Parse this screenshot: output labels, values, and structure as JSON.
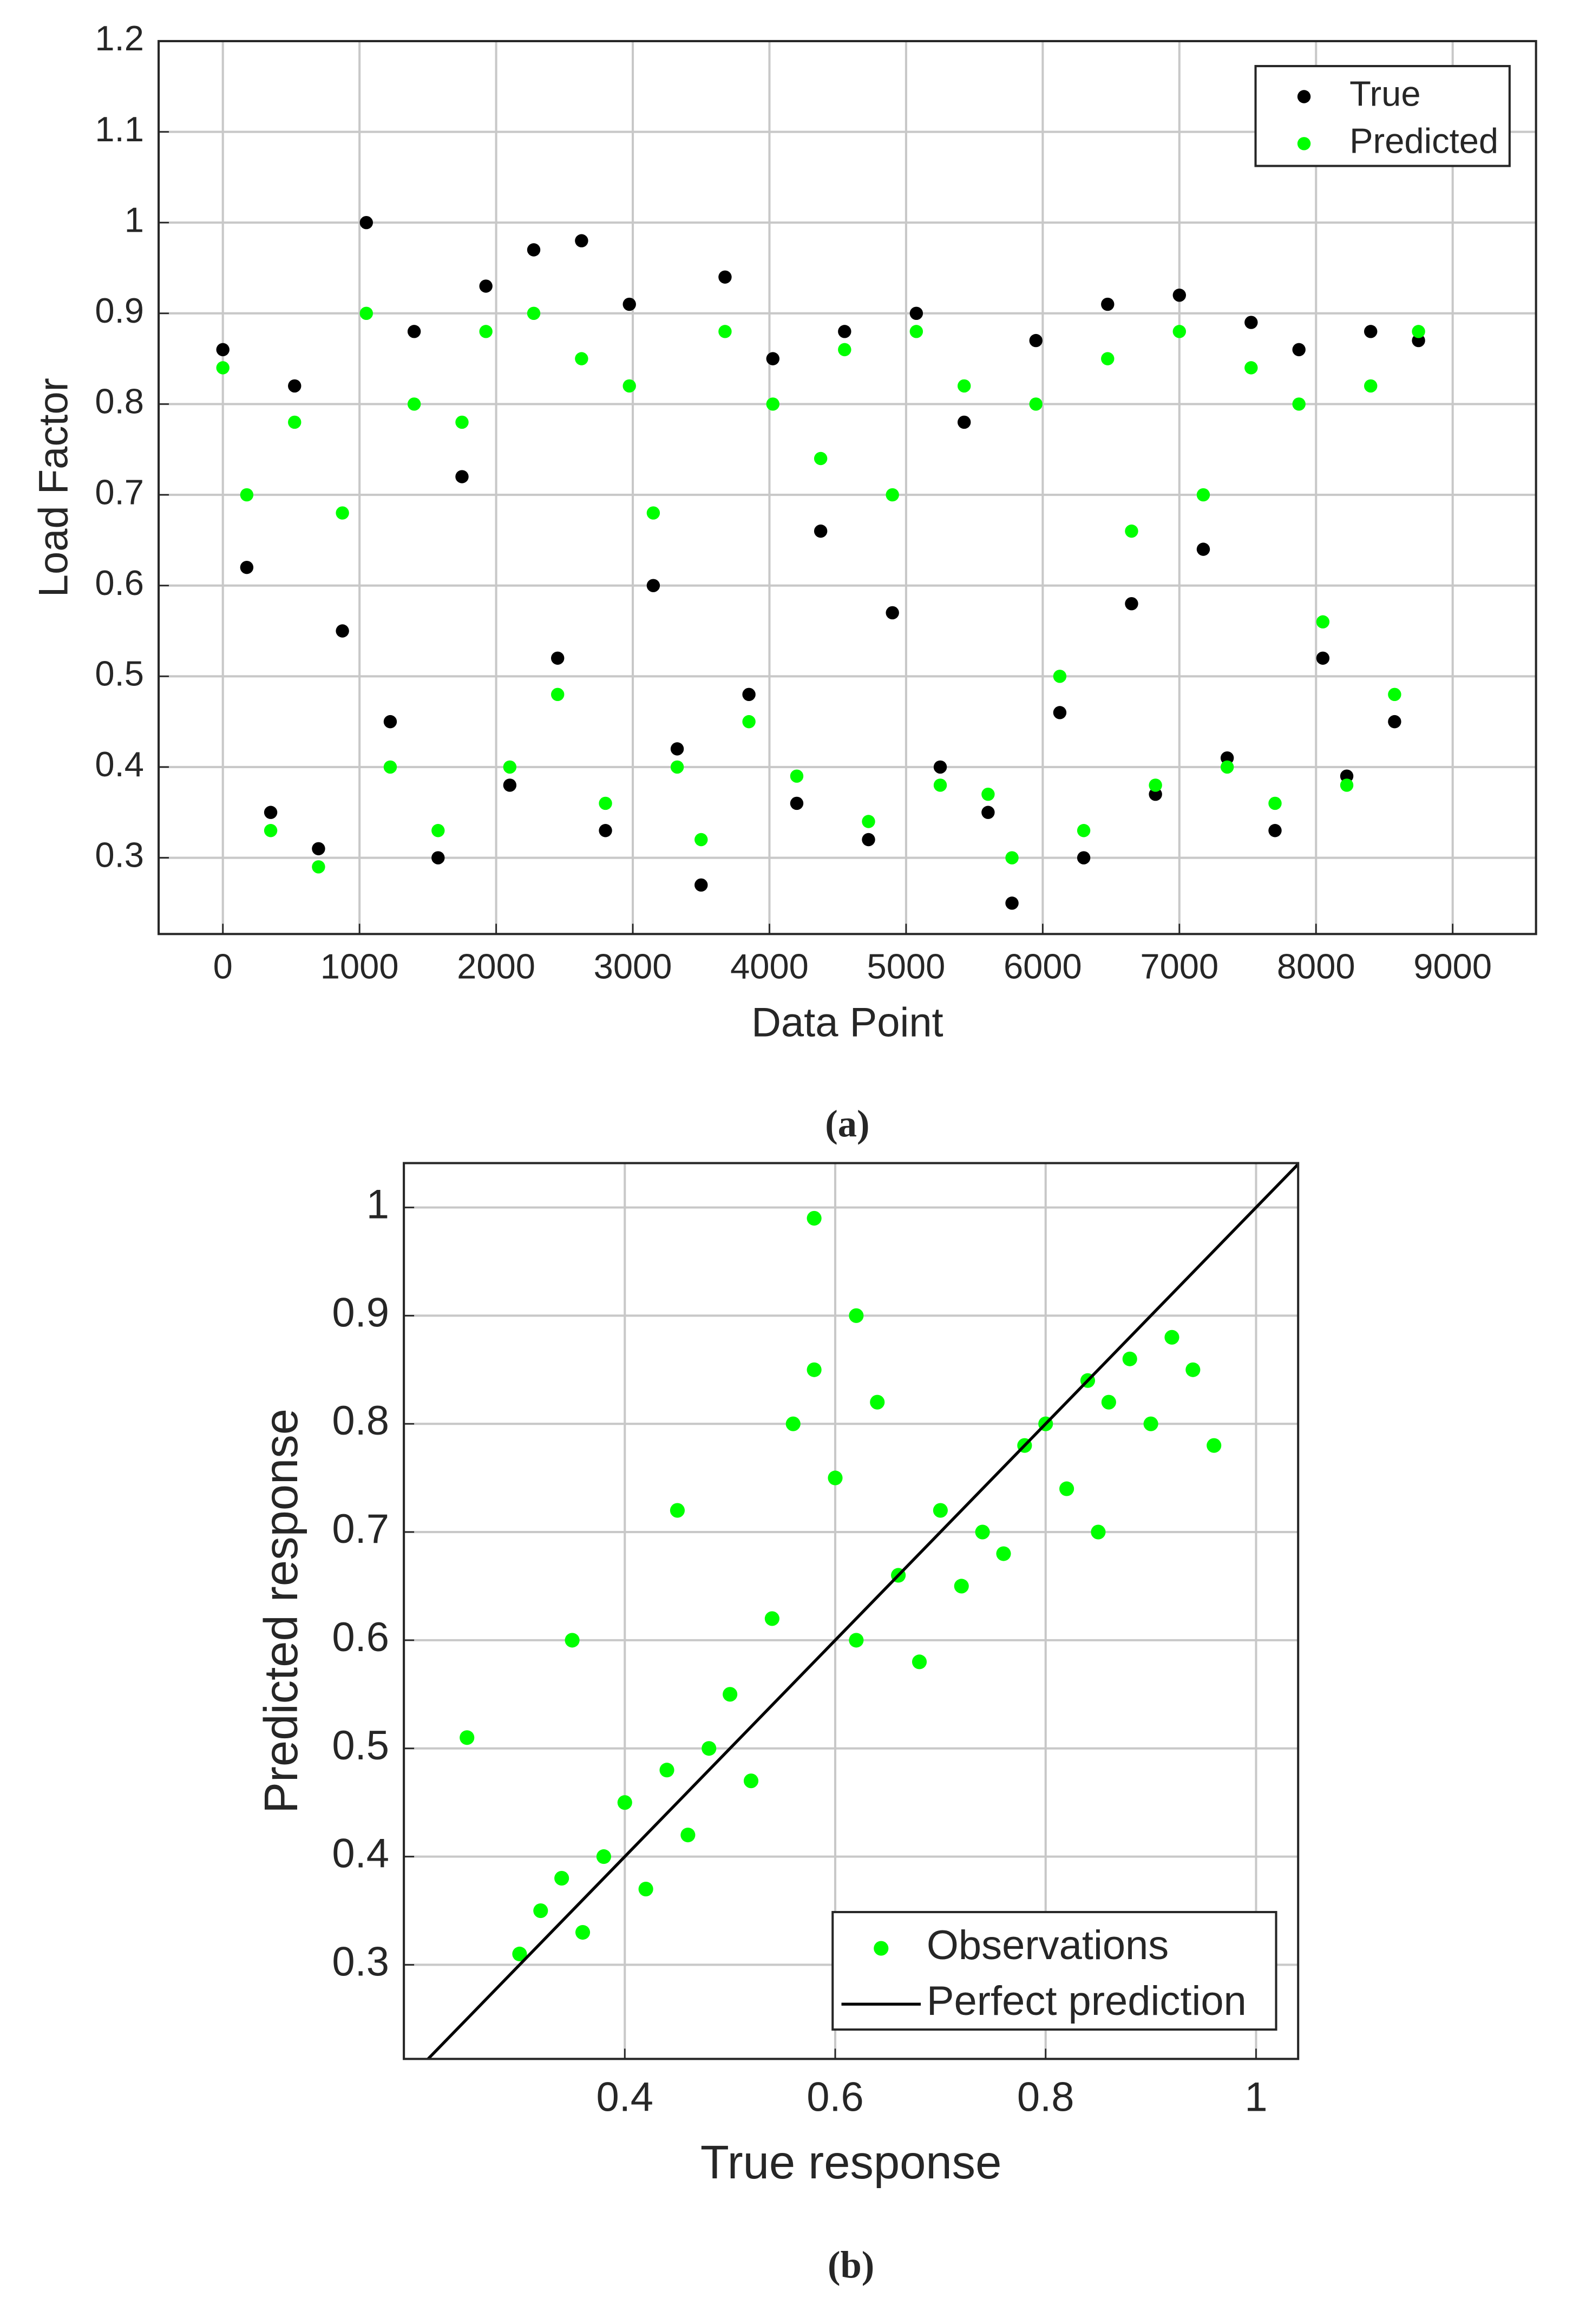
{
  "chart_data": [
    {
      "type": "scatter",
      "caption": "(a)",
      "x_label": "Data Point",
      "y_label": "Load Factor",
      "xlim": [
        -470,
        9610
      ],
      "ylim": [
        0.216,
        1.2
      ],
      "xticks": [
        0,
        1000,
        2000,
        3000,
        4000,
        5000,
        6000,
        7000,
        8000,
        9000
      ],
      "yticks": [
        0.3,
        0.4,
        0.5,
        0.6,
        0.7,
        0.8,
        0.9,
        1,
        1.1,
        1.2
      ],
      "grid": true,
      "legend": "upper right",
      "x": [
        0,
        175,
        350,
        525,
        700,
        875,
        1050,
        1225,
        1400,
        1575,
        1750,
        1925,
        2100,
        2275,
        2450,
        2625,
        2800,
        2975,
        3150,
        3325,
        3500,
        3675,
        3850,
        4025,
        4200,
        4375,
        4550,
        4725,
        4900,
        5075,
        5250,
        5425,
        5600,
        5775,
        5950,
        6125,
        6300,
        6475,
        6650,
        6825,
        7000,
        7175,
        7350,
        7525,
        7700,
        7875,
        8050,
        8225,
        8400,
        8575,
        8750
      ],
      "series": [
        {
          "name": "True",
          "color": "#000000",
          "values": [
            0.86,
            0.62,
            0.35,
            0.82,
            0.31,
            0.55,
            1.0,
            0.45,
            0.88,
            0.3,
            0.72,
            0.93,
            0.38,
            0.97,
            0.52,
            0.98,
            0.33,
            0.91,
            0.6,
            0.42,
            0.27,
            0.94,
            0.48,
            0.85,
            0.36,
            0.66,
            0.88,
            0.32,
            0.57,
            0.9,
            0.4,
            0.78,
            0.35,
            0.25,
            0.87,
            0.46,
            0.3,
            0.91,
            0.58,
            0.37,
            0.92,
            0.64,
            0.41,
            0.89,
            0.33,
            0.86,
            0.52,
            0.39,
            0.88,
            0.45,
            0.87
          ]
        },
        {
          "name": "Predicted",
          "color": "#00ff00",
          "values": [
            0.84,
            0.7,
            0.33,
            0.78,
            0.29,
            0.68,
            0.9,
            0.4,
            0.8,
            0.33,
            0.78,
            0.88,
            0.4,
            0.9,
            0.48,
            0.85,
            0.36,
            0.82,
            0.68,
            0.4,
            0.32,
            0.88,
            0.45,
            0.8,
            0.39,
            0.74,
            0.86,
            0.34,
            0.7,
            0.88,
            0.38,
            0.82,
            0.37,
            0.3,
            0.8,
            0.5,
            0.33,
            0.85,
            0.66,
            0.38,
            0.88,
            0.7,
            0.4,
            0.84,
            0.36,
            0.8,
            0.56,
            0.38,
            0.82,
            0.48,
            0.88
          ]
        }
      ]
    },
    {
      "type": "scatter",
      "caption": "(b)",
      "x_label": "True response",
      "y_label": "Predicted response",
      "xlim": [
        0.19,
        1.04
      ],
      "ylim": [
        0.213,
        1.041
      ],
      "xticks": [
        0.4,
        0.6,
        0.8,
        1
      ],
      "yticks": [
        0.3,
        0.4,
        0.5,
        0.6,
        0.7,
        0.8,
        0.9,
        1
      ],
      "grid": true,
      "legend": "lower right",
      "series": [
        {
          "name": "Observations",
          "color": "#00ff00",
          "mode": "markers",
          "x": [
            0.3,
            0.32,
            0.34,
            0.36,
            0.38,
            0.4,
            0.42,
            0.44,
            0.46,
            0.48,
            0.5,
            0.52,
            0.54,
            0.56,
            0.58,
            0.6,
            0.62,
            0.64,
            0.66,
            0.68,
            0.7,
            0.72,
            0.74,
            0.76,
            0.78,
            0.8,
            0.82,
            0.84,
            0.86,
            0.88,
            0.9,
            0.92,
            0.94,
            0.96,
            0.35,
            0.45,
            0.58,
            0.62,
            0.85,
            0.25
          ],
          "values": [
            0.31,
            0.35,
            0.38,
            0.33,
            0.4,
            0.45,
            0.37,
            0.48,
            0.42,
            0.5,
            0.55,
            0.47,
            0.62,
            0.8,
            0.85,
            0.75,
            0.6,
            0.82,
            0.66,
            0.58,
            0.72,
            0.65,
            0.7,
            0.68,
            0.78,
            0.8,
            0.74,
            0.84,
            0.82,
            0.86,
            0.8,
            0.88,
            0.85,
            0.78,
            0.6,
            0.72,
            0.99,
            0.9,
            0.7,
            0.51
          ]
        },
        {
          "name": "Perfect prediction",
          "color": "#000000",
          "mode": "line",
          "x": [
            0.19,
            1.04
          ],
          "values": [
            0.19,
            1.04
          ]
        }
      ]
    }
  ]
}
